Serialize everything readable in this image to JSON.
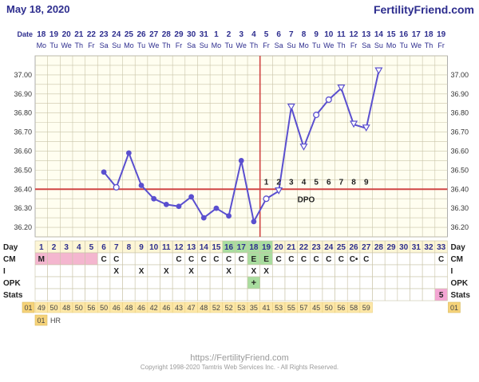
{
  "header": {
    "date": "May 18, 2020",
    "brand": "FertilityFriend.com"
  },
  "footer": {
    "url": "https://FertilityFriend.com",
    "copyright": "Copyright 1998-2020 Tamtris Web Services Inc. - All Rights Reserved."
  },
  "row_labels": {
    "date": "Date",
    "day": "Day",
    "cm": "CM",
    "intercourse": "I",
    "opk": "OPK",
    "stats": "Stats",
    "hr": "HR"
  },
  "colors": {
    "line": "#5a4fcf",
    "coverline": "#d04545",
    "grid": "#c9c4a8",
    "plot_bg": "#fffef0",
    "day_row_bg": "#fdf6d6",
    "cm_pink": "#f4b6cf",
    "fertile_green": "#a9dd9f",
    "stats_bg": "#fde7a7",
    "stats_cd_bg": "#f6d37a",
    "stats_pink": "#f4a6d4",
    "text_blue": "#2d2d8e"
  },
  "chart_data": {
    "type": "line",
    "title": "",
    "ylabel": "",
    "xlabel": "",
    "ylim": [
      36.15,
      37.1
    ],
    "yticks": [
      "36.20",
      "36.30",
      "36.40",
      "36.50",
      "36.60",
      "36.70",
      "36.80",
      "36.90",
      "37.00"
    ],
    "ytick_values": [
      36.2,
      36.3,
      36.4,
      36.5,
      36.6,
      36.7,
      36.8,
      36.9,
      37.0
    ],
    "dates": [
      "18",
      "19",
      "20",
      "21",
      "22",
      "23",
      "24",
      "25",
      "26",
      "27",
      "28",
      "29",
      "30",
      "31",
      "1",
      "2",
      "3",
      "4",
      "5",
      "6",
      "7",
      "8",
      "9",
      "10",
      "11",
      "12",
      "13",
      "14",
      "15",
      "16",
      "17",
      "18",
      "19"
    ],
    "weekdays": [
      "Mo",
      "Tu",
      "We",
      "Th",
      "Fr",
      "Sa",
      "Su",
      "Mo",
      "Tu",
      "We",
      "Th",
      "Fr",
      "Sa",
      "Su",
      "Mo",
      "Tu",
      "We",
      "Th",
      "Fr",
      "Sa",
      "Su",
      "Mo",
      "Tu",
      "We",
      "Th",
      "Fr",
      "Sa",
      "Su",
      "Mo",
      "Tu",
      "We",
      "Th",
      "Fr"
    ],
    "days": [
      "1",
      "2",
      "3",
      "4",
      "5",
      "6",
      "7",
      "8",
      "9",
      "10",
      "11",
      "12",
      "13",
      "14",
      "15",
      "16",
      "17",
      "18",
      "19",
      "20",
      "21",
      "22",
      "23",
      "24",
      "25",
      "26",
      "27",
      "28",
      "29",
      "30",
      "31",
      "32",
      "33"
    ],
    "temperatures": [
      null,
      null,
      null,
      null,
      null,
      36.49,
      36.41,
      36.59,
      36.42,
      36.35,
      36.32,
      36.31,
      36.36,
      36.25,
      36.3,
      36.26,
      36.55,
      36.23,
      36.35,
      36.39,
      36.83,
      36.62,
      36.79,
      36.87,
      36.93,
      36.74,
      36.72,
      37.02,
      null,
      null,
      null,
      null,
      null
    ],
    "open_markers": [
      6,
      18,
      19,
      20,
      21,
      22,
      23,
      24,
      25,
      26,
      27
    ],
    "hollow_triangle_markers": [
      19,
      20,
      21,
      24,
      25,
      26,
      27
    ],
    "coverline": 36.4,
    "ovulation_day": 18,
    "dpo_label": "DPO",
    "dpo_numbers": [
      "1",
      "2",
      "3",
      "4",
      "5",
      "6",
      "7",
      "8",
      "9"
    ],
    "cm": [
      "M",
      "",
      "",
      "",
      "",
      "C",
      "C",
      "",
      "",
      "",
      "",
      "C",
      "C",
      "C",
      "C",
      "C",
      "C",
      "E",
      "E",
      "C",
      "C",
      "C",
      "C",
      "C",
      "C",
      "C•",
      "C",
      "",
      "",
      "",
      "",
      "",
      "C"
    ],
    "intercourse": [
      "",
      "",
      "",
      "",
      "",
      "",
      "X",
      "",
      "X",
      "",
      "X",
      "",
      "X",
      "",
      "",
      "X",
      "",
      "X",
      "X",
      "",
      "",
      "",
      "",
      "",
      "",
      "",
      "",
      "",
      "",
      "",
      "",
      "",
      ""
    ],
    "opk": [
      "",
      "",
      "",
      "",
      "",
      "",
      "",
      "",
      "",
      "",
      "",
      "",
      "",
      "",
      "",
      "",
      "",
      "+",
      "",
      "",
      "",
      "",
      "",
      "",
      "",
      "",
      "",
      "",
      "",
      "",
      "",
      "",
      ""
    ],
    "stats_marker": "5",
    "stats_label": "01",
    "stats_values": [
      "49",
      "50",
      "48",
      "50",
      "56",
      "50",
      "46",
      "48",
      "46",
      "42",
      "46",
      "43",
      "47",
      "48",
      "52",
      "52",
      "53",
      "35",
      "41",
      "53",
      "55",
      "57",
      "45",
      "50",
      "56",
      "58",
      "59",
      "",
      "",
      "",
      "",
      "",
      ""
    ],
    "hr_label": "01",
    "hr_text": "HR"
  }
}
